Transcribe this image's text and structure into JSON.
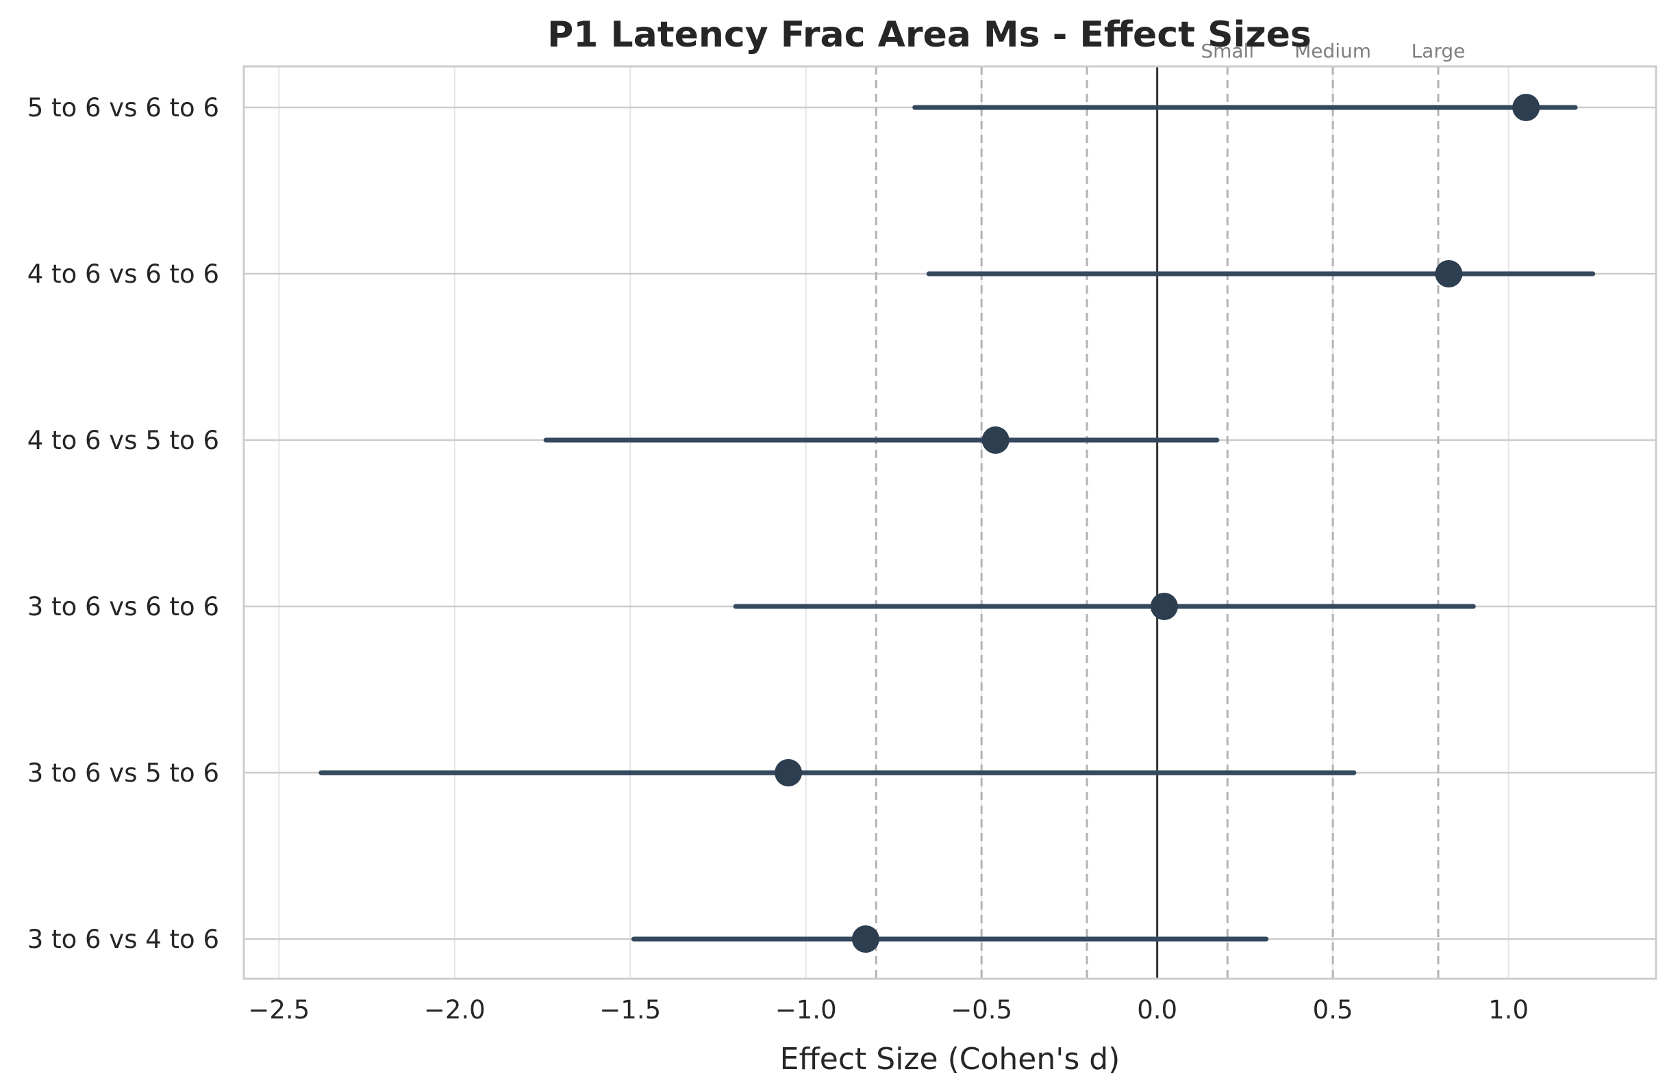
{
  "chart_data": {
    "type": "forest",
    "title": "P1 Latency Frac Area Ms - Effect Sizes",
    "xlabel": "Effect Size (Cohen's d)",
    "ylabel": "",
    "xlim": [
      -2.6,
      1.42
    ],
    "xticks": [
      -2.5,
      -2.0,
      -1.5,
      -1.0,
      -0.5,
      0.0,
      0.5,
      1.0
    ],
    "xtick_labels": [
      "−2.5",
      "−2.0",
      "−1.5",
      "−1.0",
      "−0.5",
      "0.0",
      "0.5",
      "1.0"
    ],
    "grid": true,
    "zero_line": 0.0,
    "reference_lines": [
      -0.8,
      -0.5,
      -0.2,
      0.2,
      0.5,
      0.8
    ],
    "reference_labels": [
      {
        "text": "Small",
        "x": 0.2
      },
      {
        "text": "Medium",
        "x": 0.5
      },
      {
        "text": "Large",
        "x": 0.8
      }
    ],
    "comparisons": [
      {
        "label": "5 to 6 vs 6 to 6",
        "d": 1.05,
        "ci_low": -0.69,
        "ci_high": 1.19
      },
      {
        "label": "4 to 6 vs 6 to 6",
        "d": 0.83,
        "ci_low": -0.65,
        "ci_high": 1.24
      },
      {
        "label": "4 to 6 vs 5 to 6",
        "d": -0.46,
        "ci_low": -1.74,
        "ci_high": 0.17
      },
      {
        "label": "3 to 6 vs 6 to 6",
        "d": 0.02,
        "ci_low": -1.2,
        "ci_high": 0.9
      },
      {
        "label": "3 to 6 vs 5 to 6",
        "d": -1.05,
        "ci_low": -2.38,
        "ci_high": 0.56
      },
      {
        "label": "3 to 6 vs 4 to 6",
        "d": -0.83,
        "ci_low": -1.49,
        "ci_high": 0.31
      }
    ],
    "colors": {
      "point": "#2c3e50",
      "ci_line": "#34495e",
      "zero_line": "#333333",
      "ref_line": "#b3b3b3",
      "grid": "#e5e5e5",
      "hgrid": "#cccccc",
      "spine": "#cccccc"
    }
  }
}
